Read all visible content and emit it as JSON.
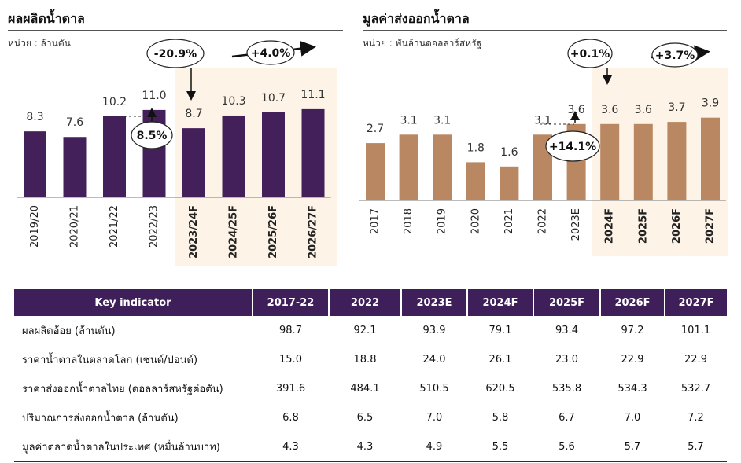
{
  "chart_data": [
    {
      "type": "bar",
      "title": "ผลผลิตน้ำตาล",
      "subtitle": "หน่วย : ล้านตัน",
      "categories": [
        "2019/20",
        "2020/21",
        "2021/22",
        "2022/23",
        "2023/24F",
        "2024/25F",
        "2025/26F",
        "2026/27F"
      ],
      "values": [
        8.3,
        7.6,
        10.2,
        11.0,
        8.7,
        10.3,
        10.7,
        11.1
      ],
      "value_labels": [
        "8.3",
        "7.6",
        "10.2",
        "11.0",
        "8.7",
        "10.3",
        "10.7",
        "11.1"
      ],
      "forecast_start_index": 4,
      "ylim": [
        0,
        14.2
      ],
      "bar_color": "#44205a",
      "forecast_bg_color": "#fdf3e6",
      "annotations": [
        {
          "text": "-20.9%",
          "kind": "ellipse-arrow-down"
        },
        {
          "text": "8.5%",
          "kind": "ellipse-arrow-up"
        },
        {
          "text": "+4.0%",
          "kind": "ellipse-arrow-right"
        }
      ],
      "grid": false
    },
    {
      "type": "bar",
      "title": "มูลค่าส่งออกน้ำตาล",
      "subtitle": "หน่วย : พันล้านดอลลาร์สหรัฐ",
      "categories": [
        "2017",
        "2018",
        "2019",
        "2020",
        "2021",
        "2022",
        "2023E",
        "2024F",
        "2025F",
        "2026F",
        "2027F"
      ],
      "values": [
        2.7,
        3.1,
        3.1,
        1.8,
        1.6,
        3.1,
        3.6,
        3.6,
        3.6,
        3.7,
        3.9
      ],
      "value_labels": [
        "2.7",
        "3.1",
        "3.1",
        "1.8",
        "1.6",
        "3.1",
        "3.6",
        "3.6",
        "3.6",
        "3.7",
        "3.9"
      ],
      "forecast_start_index": 7,
      "ylim": [
        0,
        5.26
      ],
      "bar_color": "#b98762",
      "forecast_bg_color": "#fdf3e6",
      "annotations": [
        {
          "text": "+0.1%",
          "kind": "ellipse-arrow-down"
        },
        {
          "text": "+14.1%",
          "kind": "ellipse-arrow-up"
        },
        {
          "text": "+3.7%",
          "kind": "ellipse-arrow-right"
        }
      ],
      "grid": false
    },
    {
      "type": "table",
      "header": [
        "Key indicator",
        "2017-22",
        "2022",
        "2023E",
        "2024F",
        "2025F",
        "2026F",
        "2027F"
      ],
      "rows": [
        {
          "label": "ผลผลิตอ้อย (ล้านตัน)",
          "values": [
            "98.7",
            "92.1",
            "93.9",
            "79.1",
            "93.4",
            "97.2",
            "101.1"
          ]
        },
        {
          "label": "ราคาน้ำตาลในตลาดโลก (เซนต์/ปอนด์)",
          "values": [
            "15.0",
            "18.8",
            "24.0",
            "26.1",
            "23.0",
            "22.9",
            "22.9"
          ]
        },
        {
          "label": "ราคาส่งออกน้ำตาลไทย (ดอลลาร์สหรัฐต่อตัน)",
          "values": [
            "391.6",
            "484.1",
            "510.5",
            "620.5",
            "535.8",
            "534.3",
            "532.7"
          ]
        },
        {
          "label": "ปริมาณการส่งออกน้ำตาล (ล้านตัน)",
          "values": [
            "6.8",
            "6.5",
            "7.0",
            "5.8",
            "6.7",
            "7.0",
            "7.2"
          ]
        },
        {
          "label": "มูลค่าตลาดน้ำตาลในประเทศ (หมื่นล้านบาท)",
          "values": [
            "4.3",
            "4.3",
            "4.9",
            "5.5",
            "5.6",
            "5.7",
            "5.7"
          ]
        }
      ],
      "header_color": "#3f1f59"
    }
  ]
}
